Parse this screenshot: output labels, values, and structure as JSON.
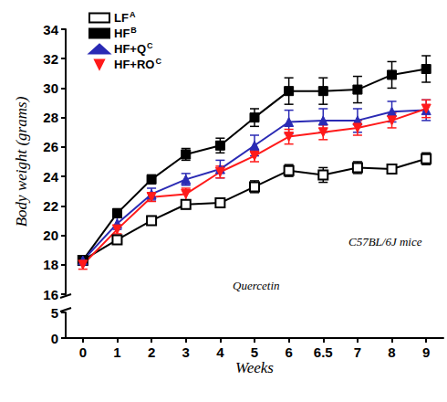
{
  "chart_data": [
    {
      "type": "line",
      "ylabel": "Body weight (grams)",
      "categories": [
        "0",
        "1",
        "2",
        "3",
        "4",
        "5",
        "6",
        "6.5",
        "7",
        "8",
        "9"
      ],
      "ylim": [
        16,
        34
      ],
      "yticks": [
        16,
        18,
        20,
        22,
        24,
        26,
        28,
        30,
        32,
        34
      ],
      "grid": false,
      "legend": "upper left",
      "tick_labels": "y",
      "annotations": [
        {
          "text": "Quercetin"
        },
        {
          "text": "C57BL/6J mice"
        }
      ],
      "series": [
        {
          "name": "LF",
          "superscript": "A",
          "color": "#000000",
          "marker": "square_open",
          "values": [
            18.3,
            19.7,
            21.0,
            22.1,
            22.2,
            23.3,
            24.4,
            24.1,
            24.6,
            24.5,
            25.2
          ],
          "errors": [
            0.3,
            0.3,
            0.3,
            0.3,
            0.3,
            0.4,
            0.4,
            0.5,
            0.4,
            0.3,
            0.4
          ]
        },
        {
          "name": "HF",
          "superscript": "B",
          "color": "#000000",
          "marker": "square",
          "values": [
            18.3,
            21.5,
            23.8,
            25.5,
            26.1,
            28.0,
            29.8,
            29.8,
            29.9,
            30.9,
            31.3
          ],
          "errors": [
            0.3,
            0.3,
            0.3,
            0.4,
            0.5,
            0.6,
            0.9,
            0.9,
            0.9,
            0.9,
            0.9
          ]
        },
        {
          "name": "HF+Q",
          "superscript": "C",
          "color": "#2a2ab4",
          "marker": "triangle",
          "values": [
            18.3,
            20.8,
            22.8,
            23.8,
            24.5,
            26.1,
            27.7,
            27.8,
            27.8,
            28.4,
            28.5
          ],
          "errors": [
            0.3,
            0.4,
            0.4,
            0.4,
            0.6,
            0.7,
            0.8,
            0.8,
            0.8,
            0.7,
            0.7
          ]
        },
        {
          "name": "HF+RO",
          "superscript": "C",
          "color": "#ff1a1a",
          "marker": "triangle_down",
          "values": [
            18.0,
            20.4,
            22.6,
            22.8,
            24.3,
            25.4,
            26.7,
            27.0,
            27.3,
            27.8,
            28.6
          ],
          "errors": [
            0.3,
            0.3,
            0.3,
            0.4,
            0.4,
            0.4,
            0.5,
            0.5,
            0.5,
            0.5,
            0.6
          ]
        }
      ]
    },
    {
      "type": "line",
      "xlabel": "Weeks",
      "categories": [
        "0",
        "1",
        "2",
        "3",
        "4",
        "5",
        "6",
        "6.5",
        "7",
        "8",
        "9"
      ],
      "ylim": [
        0,
        5
      ],
      "yticks": [
        0,
        5
      ],
      "grid": false,
      "series": []
    }
  ]
}
